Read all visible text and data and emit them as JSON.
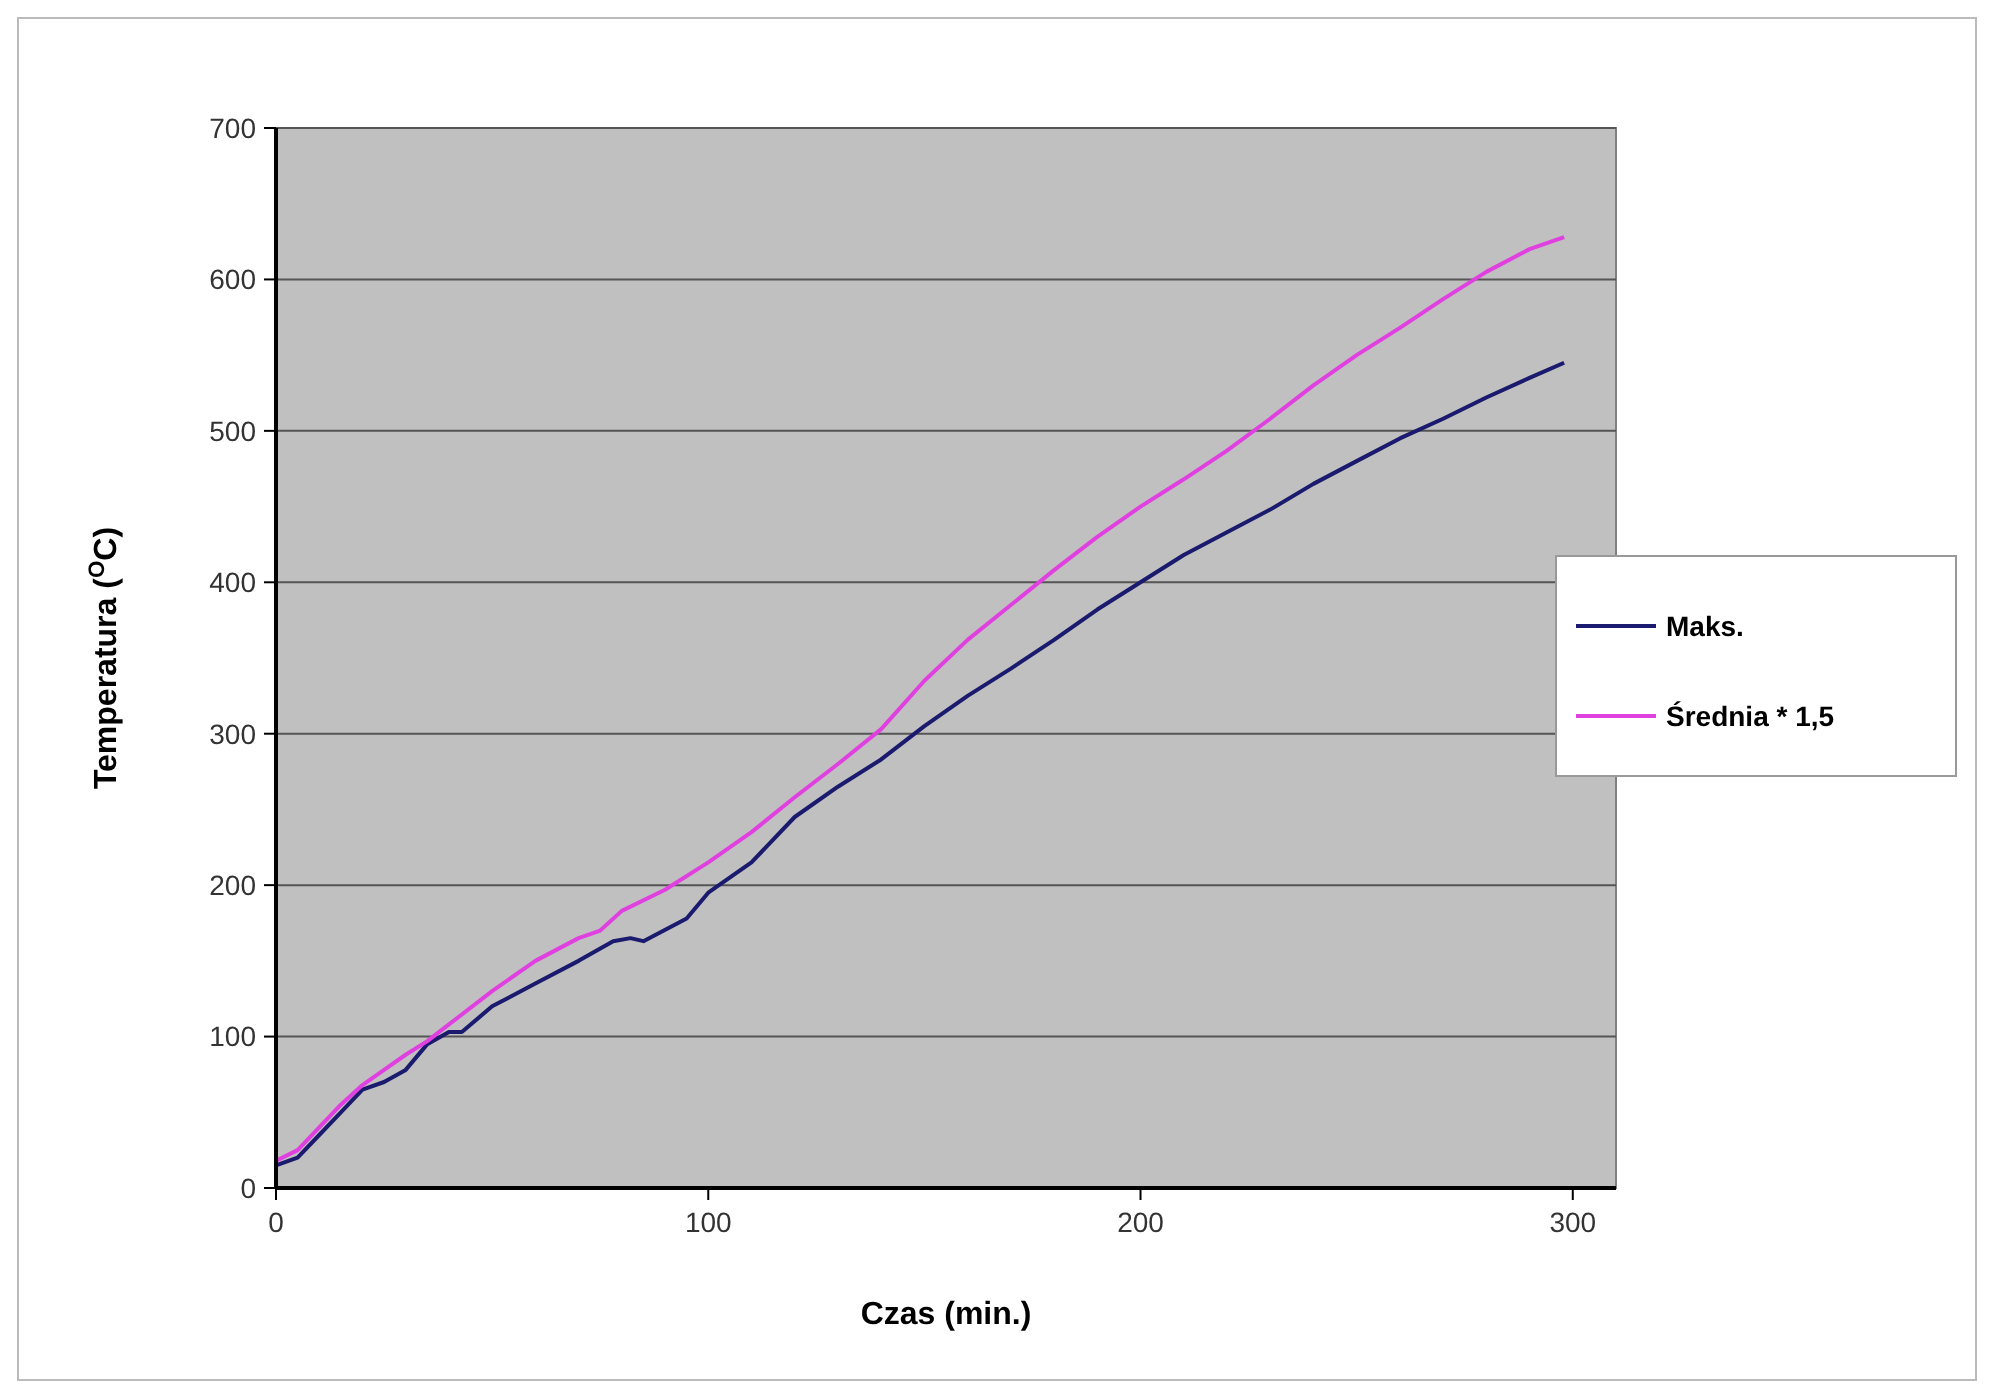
{
  "chart_data": {
    "type": "line",
    "xlabel": "Czas  (min.)",
    "ylabel": "Temperatura ($^{O}$C)",
    "xlim": [
      0,
      310
    ],
    "xticks": [
      0,
      100,
      200,
      300
    ],
    "ylim": [
      0,
      700
    ],
    "yticks": [
      0,
      100,
      200,
      300,
      400,
      500,
      600,
      700
    ],
    "grid": "y",
    "legend": "right",
    "marker": "none",
    "line_style": "solid",
    "series": [
      {
        "name": "Maks.",
        "color": "#1a1a6e",
        "x": [
          0,
          5,
          10,
          15,
          20,
          25,
          30,
          35,
          40,
          43,
          50,
          60,
          70,
          78,
          82,
          85,
          95,
          100,
          110,
          120,
          130,
          140,
          150,
          160,
          170,
          180,
          190,
          200,
          210,
          220,
          230,
          240,
          250,
          260,
          270,
          280,
          290,
          298
        ],
        "values": [
          15,
          20,
          35,
          50,
          65,
          70,
          78,
          95,
          103,
          103,
          120,
          135,
          150,
          163,
          165,
          163,
          178,
          195,
          215,
          245,
          265,
          283,
          305,
          325,
          343,
          362,
          382,
          400,
          418,
          433,
          448,
          465,
          480,
          495,
          508,
          522,
          535,
          545
        ]
      },
      {
        "name": "Średnia * 1,5",
        "color": "#e040e0",
        "x": [
          0,
          5,
          10,
          15,
          20,
          25,
          30,
          35,
          40,
          50,
          60,
          70,
          75,
          80,
          90,
          100,
          110,
          120,
          130,
          140,
          150,
          160,
          170,
          180,
          190,
          200,
          210,
          220,
          230,
          240,
          250,
          260,
          270,
          280,
          290,
          298
        ],
        "values": [
          18,
          25,
          40,
          55,
          68,
          78,
          88,
          97,
          108,
          130,
          150,
          165,
          170,
          183,
          197,
          215,
          235,
          258,
          280,
          303,
          335,
          362,
          385,
          408,
          430,
          450,
          468,
          487,
          508,
          530,
          550,
          568,
          587,
          605,
          620,
          628
        ]
      }
    ]
  }
}
